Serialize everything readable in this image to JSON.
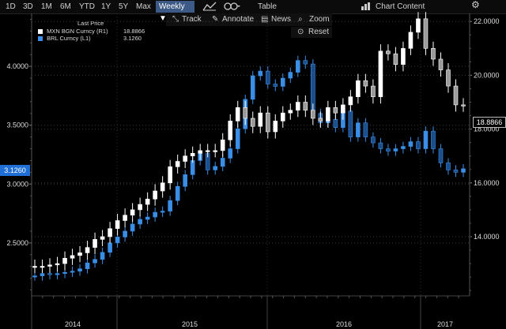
{
  "toolbar": {
    "periods": [
      "1D",
      "3D",
      "1M",
      "6M",
      "YTD",
      "1Y",
      "5Y",
      "Max"
    ],
    "frequency": "Weekly ▼",
    "table_label": "Table",
    "chart_content_label": "Chart Content"
  },
  "subtoolbar": {
    "track": "Track",
    "annotate": "Annotate",
    "news": "News",
    "zoom": "Zoom",
    "reset": "Reset"
  },
  "legend": {
    "header": "Last Price",
    "rows": [
      {
        "label": "MXN BGN Curncy  (R1)",
        "value": "18.8866",
        "color": "#ffffff"
      },
      {
        "label": "BRL Curncy  (L1)",
        "value": "3.1260",
        "color": "#3a8ee6"
      }
    ]
  },
  "tags": {
    "left": "3.1260",
    "right": "18.8866"
  },
  "chart_data": {
    "type": "line",
    "left_axis": {
      "ticks": [
        "4.0000",
        "3.5000",
        "3.0000",
        "2.5000"
      ],
      "range": [
        2.05,
        4.45
      ],
      "series": "BRL Curncy"
    },
    "right_axis": {
      "ticks": [
        "22.0000",
        "20.0000",
        "18.0000",
        "16.0000",
        "14.0000"
      ],
      "range": [
        11.8,
        22.3
      ],
      "series": "MXN BGN Curncy"
    },
    "x_labels": [
      "2014",
      "2015",
      "2016",
      "2017"
    ],
    "series": [
      {
        "name": "BRL Curncy",
        "axis": "left",
        "color": "#3a8ee6",
        "values": [
          2.22,
          2.24,
          2.23,
          2.24,
          2.25,
          2.26,
          2.28,
          2.33,
          2.36,
          2.42,
          2.5,
          2.55,
          2.6,
          2.66,
          2.7,
          2.72,
          2.76,
          2.77,
          2.86,
          2.98,
          3.08,
          3.2,
          3.26,
          3.12,
          3.15,
          3.22,
          3.3,
          3.47,
          3.72,
          3.92,
          3.96,
          3.85,
          3.83,
          3.9,
          3.95,
          4.05,
          4.02,
          3.6,
          3.52,
          3.55,
          3.48,
          3.62,
          3.4,
          3.52,
          3.4,
          3.35,
          3.3,
          3.28,
          3.3,
          3.32,
          3.36,
          3.3,
          3.45,
          3.3,
          3.18,
          3.12,
          3.1,
          3.13
        ]
      },
      {
        "name": "MXN BGN Curncy",
        "axis": "right",
        "color": "#ffffff",
        "values": [
          12.9,
          12.9,
          12.95,
          13.0,
          13.2,
          13.3,
          13.4,
          13.6,
          13.9,
          14.0,
          14.3,
          14.6,
          14.8,
          15.0,
          15.2,
          15.4,
          15.7,
          16.0,
          16.6,
          16.8,
          17.0,
          17.1,
          17.2,
          17.2,
          17.2,
          17.6,
          18.3,
          18.8,
          18.4,
          18.1,
          18.6,
          17.9,
          18.3,
          18.6,
          18.7,
          19.0,
          18.7,
          18.4,
          18.3,
          18.8,
          18.6,
          18.9,
          19.2,
          19.8,
          19.6,
          19.2,
          20.9,
          20.8,
          20.4,
          21.0,
          21.6,
          22.1,
          21.0,
          20.6,
          20.2,
          19.6,
          18.9,
          18.89
        ]
      }
    ]
  }
}
